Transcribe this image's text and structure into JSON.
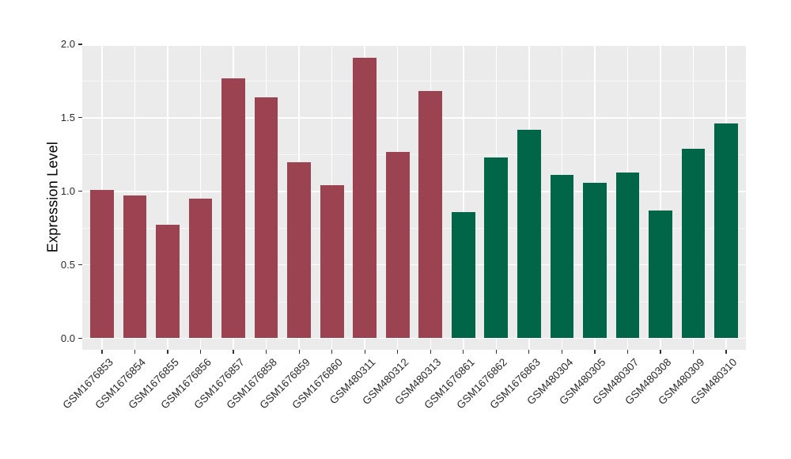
{
  "chart_data": {
    "type": "bar",
    "title": "",
    "ylabel": "Expression Level",
    "xlabel": "",
    "ylim": [
      0,
      2.0
    ],
    "yticks": [
      0,
      0.5,
      1.0,
      1.5,
      2.0
    ],
    "ytick_labels": [
      "0.0",
      "0.5",
      "1.0",
      "1.5",
      "2.0"
    ],
    "yminor_ticks": [
      0.25,
      0.75,
      1.25,
      1.75
    ],
    "legend_position": "none",
    "grid": "white major and minor gridlines on gray panel",
    "x_label_rotation_deg": 45,
    "categories": [
      "GSM1676853",
      "GSM1676854",
      "GSM1676855",
      "GSM1676856",
      "GSM1676857",
      "GSM1676858",
      "GSM1676859",
      "GSM1676860",
      "GSM480311",
      "GSM480312",
      "GSM480313",
      "GSM1676861",
      "GSM1676862",
      "GSM1676863",
      "GSM480304",
      "GSM480305",
      "GSM480307",
      "GSM480308",
      "GSM480309",
      "GSM480310"
    ],
    "values": [
      1.01,
      0.97,
      0.77,
      0.95,
      1.77,
      1.64,
      1.2,
      1.04,
      1.91,
      1.27,
      1.68,
      0.86,
      1.23,
      1.42,
      1.11,
      1.06,
      1.13,
      0.87,
      1.29,
      1.46
    ],
    "bar_colors": [
      "#9C4352",
      "#9C4352",
      "#9C4352",
      "#9C4352",
      "#9C4352",
      "#9C4352",
      "#9C4352",
      "#9C4352",
      "#9C4352",
      "#9C4352",
      "#9C4352",
      "#006647",
      "#006647",
      "#006647",
      "#006647",
      "#006647",
      "#006647",
      "#006647",
      "#006647",
      "#006647"
    ],
    "colors": {
      "panel_background": "#EBEBEB",
      "gridline": "#FFFFFF",
      "bar_red": "#9C4352",
      "bar_green": "#006647",
      "axis_text": "#2B2B2B",
      "axis_title": "#000000",
      "tick_mark": "#333333"
    }
  }
}
